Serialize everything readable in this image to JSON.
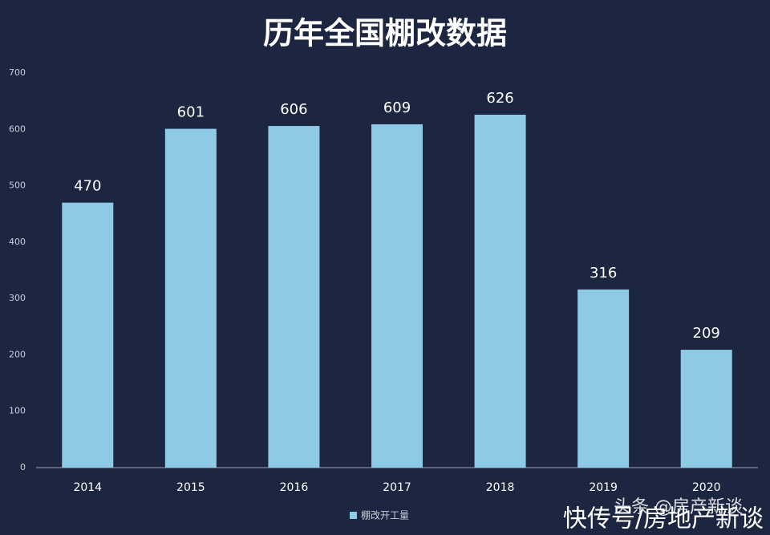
{
  "chart_data": {
    "type": "bar",
    "title": "历年全国棚改数据",
    "categories": [
      "2014",
      "2015",
      "2016",
      "2017",
      "2018",
      "2019",
      "2020"
    ],
    "series": [
      {
        "name": "棚改开工量",
        "color": "#8ecae6",
        "values": [
          470,
          601,
          606,
          609,
          626,
          316,
          209
        ]
      }
    ],
    "ylim": [
      0,
      700
    ],
    "yticks": [
      0,
      100,
      200,
      300,
      400,
      500,
      600,
      700
    ],
    "grid": false,
    "legend": "bottom",
    "watermark": [
      "头条 @房产新谈",
      "快传号/房地产新谈"
    ]
  }
}
